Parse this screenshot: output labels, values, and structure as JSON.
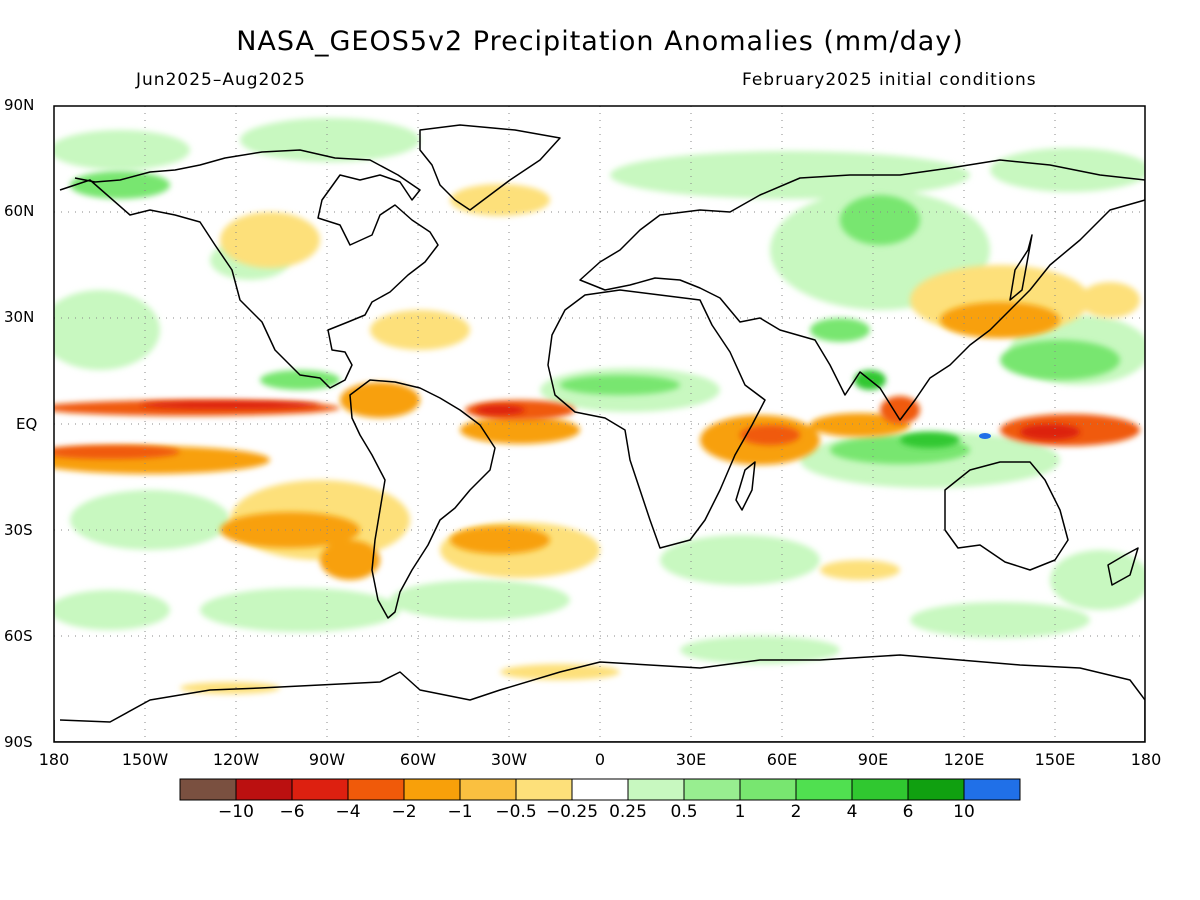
{
  "title": "NASA_GEOS5v2 Precipitation Anomalies (mm/day)",
  "period": "Jun2025–Aug2025",
  "initial_conditions": "February2025 initial conditions",
  "lat_labels": [
    "90N",
    "60N",
    "30N",
    "EQ",
    "30S",
    "60S",
    "90S"
  ],
  "lon_labels": [
    "180",
    "150W",
    "120W",
    "90W",
    "60W",
    "30W",
    "0",
    "30E",
    "60E",
    "90E",
    "120E",
    "150E",
    "180"
  ],
  "colorbar": {
    "colors": [
      "#7a5040",
      "#bb1010",
      "#dd2010",
      "#f05a0a",
      "#f8a00a",
      "#fac040",
      "#fde07a",
      "#ffffff",
      "#c8f8c0",
      "#98ee90",
      "#78e670",
      "#50e050",
      "#30c830",
      "#10a010",
      "#2070e8"
    ],
    "labels": [
      "−10",
      "−6",
      "−4",
      "−2",
      "−1",
      "−0.5",
      "−0.25",
      "0.25",
      "0.5",
      "1",
      "2",
      "4",
      "6",
      "10"
    ]
  },
  "colors": {
    "wet_light": "#c8f8c0",
    "wet_mid": "#78e670",
    "wet_strong": "#30c830",
    "dry_light": "#fde07a",
    "dry_mid": "#f8a00a",
    "dry_strong": "#f05a0a",
    "dry_extreme": "#dd2010",
    "blue": "#2070e8"
  }
}
